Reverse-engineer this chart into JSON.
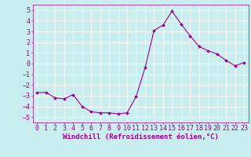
{
  "x": [
    0,
    1,
    2,
    3,
    4,
    5,
    6,
    7,
    8,
    9,
    10,
    11,
    12,
    13,
    14,
    15,
    16,
    17,
    18,
    19,
    20,
    21,
    22,
    23
  ],
  "y": [
    -2.7,
    -2.7,
    -3.2,
    -3.3,
    -2.9,
    -4.0,
    -4.5,
    -4.6,
    -4.6,
    -4.7,
    -4.6,
    -3.1,
    -0.4,
    3.1,
    3.6,
    4.9,
    3.7,
    2.6,
    1.6,
    1.2,
    0.9,
    0.3,
    -0.2,
    0.1
  ],
  "line_color": "#990099",
  "marker": "D",
  "marker_size": 2.0,
  "bg_color": "#c8eef0",
  "grid_color": "#ffffff",
  "xlabel": "Windchill (Refroidissement éolien,°C)",
  "xlim": [
    -0.5,
    23.5
  ],
  "ylim": [
    -5.5,
    5.5
  ],
  "yticks": [
    -5,
    -4,
    -3,
    -2,
    -1,
    0,
    1,
    2,
    3,
    4,
    5
  ],
  "xticks": [
    0,
    1,
    2,
    3,
    4,
    5,
    6,
    7,
    8,
    9,
    10,
    11,
    12,
    13,
    14,
    15,
    16,
    17,
    18,
    19,
    20,
    21,
    22,
    23
  ],
  "tick_color": "#990099",
  "label_color": "#990099",
  "xlabel_fontsize": 6.5,
  "tick_fontsize": 6.0,
  "linewidth": 0.8
}
